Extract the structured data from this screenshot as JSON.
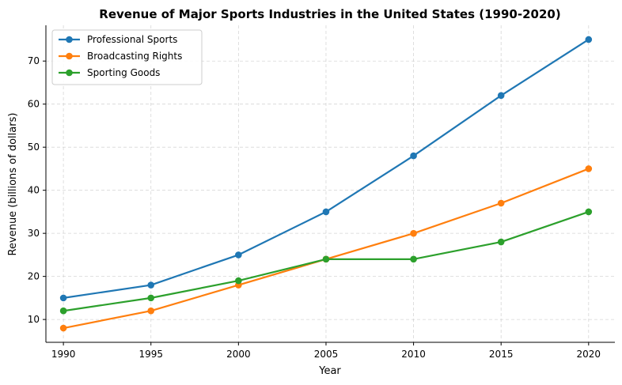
{
  "chart_data": {
    "type": "line",
    "title": "Revenue of Major Sports Industries in the United States (1990-2020)",
    "xlabel": "Year",
    "ylabel": "Revenue (billions of dollars)",
    "x": [
      1990,
      1995,
      2000,
      2005,
      2010,
      2015,
      2020
    ],
    "xlim": [
      1989,
      2021.5
    ],
    "ylim": [
      4.7,
      78.3
    ],
    "xticks": [
      1990,
      1995,
      2000,
      2005,
      2010,
      2015,
      2020
    ],
    "yticks": [
      10,
      20,
      30,
      40,
      50,
      60,
      70
    ],
    "grid": true,
    "legend_position": "top-left",
    "series": [
      {
        "name": "Professional Sports",
        "color": "#1f77b4",
        "values": [
          15,
          18,
          25,
          35,
          48,
          62,
          75
        ]
      },
      {
        "name": "Broadcasting Rights",
        "color": "#ff7f0e",
        "values": [
          8,
          12,
          18,
          24,
          30,
          37,
          45
        ]
      },
      {
        "name": "Sporting Goods",
        "color": "#2ca02c",
        "values": [
          12,
          15,
          19,
          24,
          24,
          28,
          35
        ]
      }
    ]
  }
}
